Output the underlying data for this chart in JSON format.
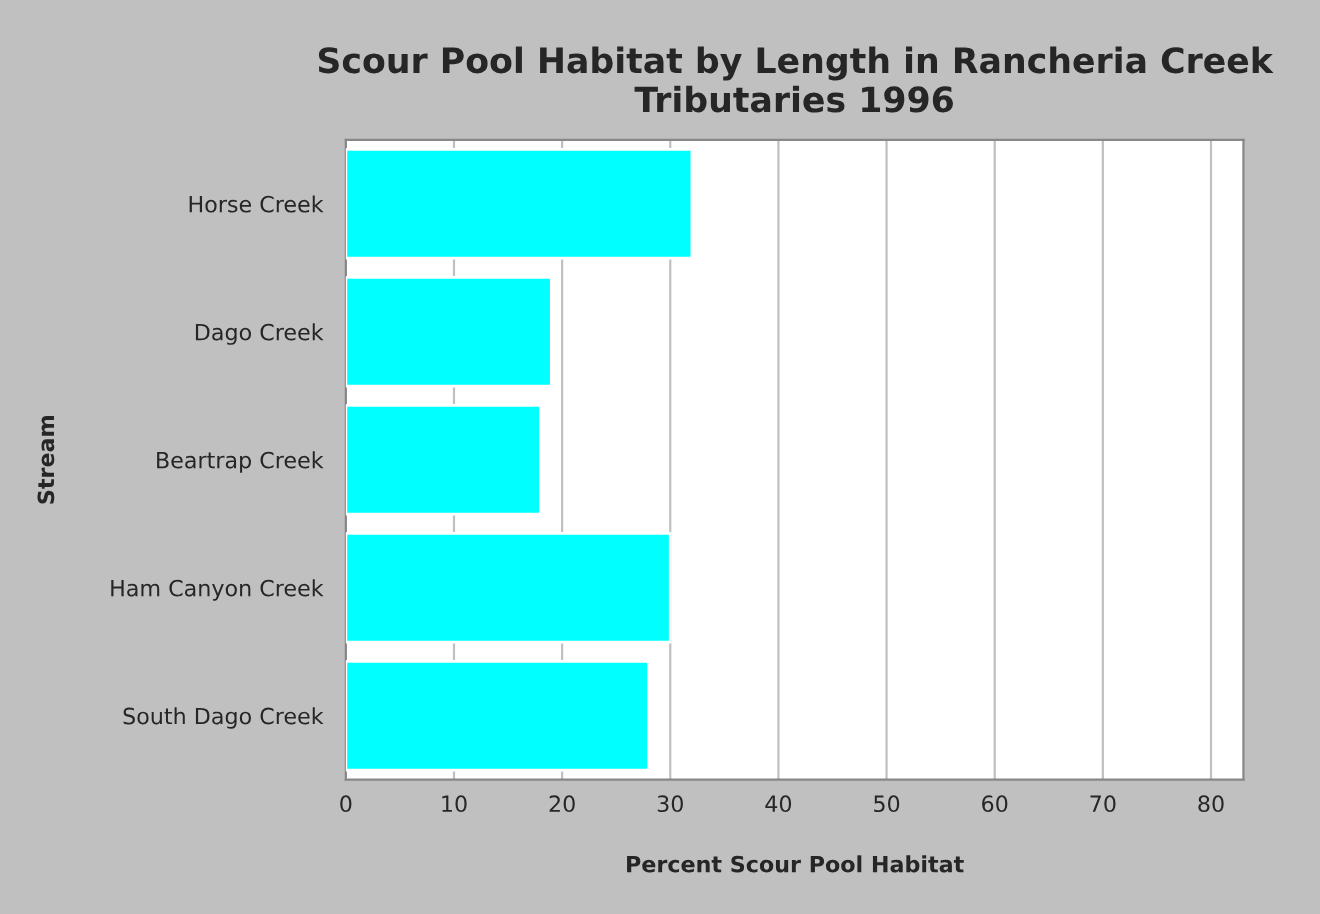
{
  "chart_data": {
    "type": "bar",
    "orientation": "horizontal",
    "title": "Scour Pool Habitat by Length in Rancheria Creek\nTributaries 1996",
    "xlabel": "Percent Scour Pool Habitat",
    "ylabel": "Stream",
    "categories": [
      "Horse Creek",
      "Dago Creek",
      "Beartrap Creek",
      "Ham Canyon Creek",
      "South Dago Creek"
    ],
    "values": [
      32,
      19,
      18,
      30,
      28
    ],
    "color": "#00ffff",
    "xlim": [
      0,
      83
    ],
    "xticks": [
      0,
      10,
      20,
      30,
      40,
      50,
      60,
      70,
      80
    ],
    "grid": "x",
    "legend": false
  }
}
